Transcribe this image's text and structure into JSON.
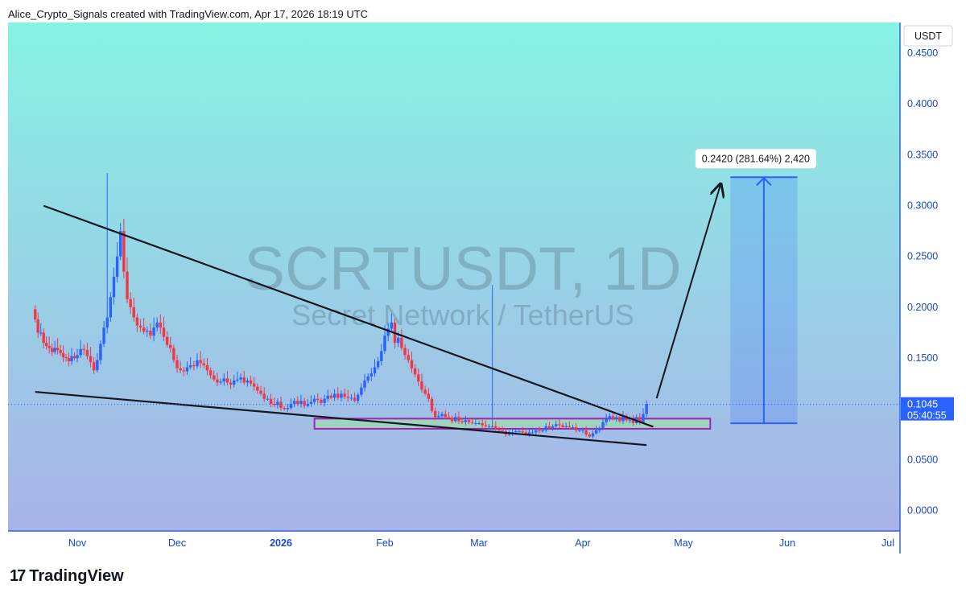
{
  "header": {
    "attribution": "Alice_Crypto_Signals created with TradingView.com, Apr 17, 2026 18:19 UTC"
  },
  "watermark": {
    "symbol": "SCRTUSDT, 1D",
    "name": "Secret Network / TetherUS"
  },
  "footer": {
    "logo_mark": "17",
    "logo_text": "TradingView"
  },
  "colors": {
    "bg_top": "#86f3e3",
    "bg_bottom": "#aab2e8",
    "up": "#2962ff",
    "down": "#f23645",
    "axis": "#2962ff"
  },
  "chart_data": {
    "type": "candlestick",
    "currency": "USDT",
    "ylim": [
      -0.02,
      0.48
    ],
    "y_ticks": [
      "0.4500",
      "0.4000",
      "0.3500",
      "0.3000",
      "0.2500",
      "0.2000",
      "0.1500",
      "0.1000",
      "0.0500",
      "0.0000"
    ],
    "x_ticks": [
      "Nov",
      "Dec",
      "2026",
      "Feb",
      "Mar",
      "Apr",
      "May",
      "Jun",
      "Jul"
    ],
    "last_price": {
      "value": "0.1045",
      "countdown": "05:40:55"
    },
    "projection_label": "0.2420 (281.64%) 2,420",
    "projection": {
      "from": 0.0859,
      "to": 0.3279,
      "x_from": "2026-05-15",
      "x_to": "2026-06-04"
    },
    "support_zone": {
      "y_low": 0.0805,
      "y_high": 0.0905,
      "x_from": "2026-01-11",
      "x_to": "2026-05-09"
    },
    "trendlines": [
      {
        "name": "falling resistance",
        "from": {
          "date": "2025-10-20",
          "value": 0.2998
        },
        "to": {
          "date": "2026-04-22",
          "value": 0.0825
        }
      },
      {
        "name": "falling support",
        "from": {
          "date": "2025-10-17",
          "value": 0.1168
        },
        "to": {
          "date": "2026-04-20",
          "value": 0.0645
        }
      }
    ],
    "arrow": {
      "from": {
        "date": "2026-04-23",
        "value": 0.1105
      },
      "to": {
        "date": "2026-05-12",
        "value": 0.3199
      }
    },
    "series": [
      {
        "close": [
          0.188,
          0.175,
          0.175,
          0.165,
          0.162,
          0.16,
          0.156,
          0.16,
          0.158,
          0.155,
          0.151,
          0.15,
          0.147,
          0.152,
          0.15,
          0.153,
          0.159,
          0.158,
          0.152,
          0.146,
          0.138,
          0.148,
          0.164,
          0.18,
          0.19,
          0.21,
          0.23,
          0.25,
          0.275,
          0.235,
          0.208,
          0.2,
          0.19,
          0.182,
          0.18,
          0.176,
          0.177,
          0.172,
          0.18,
          0.185,
          0.18,
          0.171,
          0.163,
          0.16,
          0.148,
          0.14,
          0.138,
          0.137,
          0.141,
          0.143,
          0.142,
          0.148,
          0.145,
          0.143,
          0.138,
          0.133,
          0.129,
          0.126,
          0.127,
          0.13,
          0.126,
          0.124,
          0.128,
          0.129,
          0.131,
          0.126,
          0.128,
          0.125,
          0.122,
          0.118,
          0.115,
          0.11,
          0.11,
          0.105,
          0.104,
          0.107,
          0.101,
          0.1,
          0.101,
          0.105,
          0.108,
          0.105,
          0.108,
          0.103,
          0.105,
          0.107,
          0.11,
          0.109,
          0.106,
          0.11,
          0.113,
          0.111,
          0.115,
          0.111,
          0.115,
          0.112,
          0.111,
          0.111,
          0.108,
          0.114,
          0.121,
          0.128,
          0.132,
          0.135,
          0.141,
          0.147,
          0.157,
          0.172,
          0.179,
          0.185,
          0.165,
          0.17,
          0.16,
          0.153,
          0.148,
          0.14,
          0.134,
          0.127,
          0.119,
          0.115,
          0.11,
          0.098,
          0.092,
          0.093,
          0.095,
          0.092,
          0.091,
          0.088,
          0.092,
          0.088,
          0.087,
          0.089,
          0.087,
          0.086,
          0.086,
          0.086,
          0.084,
          0.083,
          0.083,
          0.083,
          0.08,
          0.079,
          0.078,
          0.075,
          0.076,
          0.077,
          0.078,
          0.078,
          0.077,
          0.075,
          0.077,
          0.077,
          0.079,
          0.078,
          0.079,
          0.083,
          0.081,
          0.083,
          0.085,
          0.084,
          0.082,
          0.083,
          0.082,
          0.082,
          0.079,
          0.079,
          0.079,
          0.075,
          0.073,
          0.076,
          0.079,
          0.081,
          0.087,
          0.09,
          0.093,
          0.09,
          0.092,
          0.088,
          0.093,
          0.089,
          0.089,
          0.086,
          0.092,
          0.087,
          0.095,
          0.105
        ]
      }
    ]
  }
}
